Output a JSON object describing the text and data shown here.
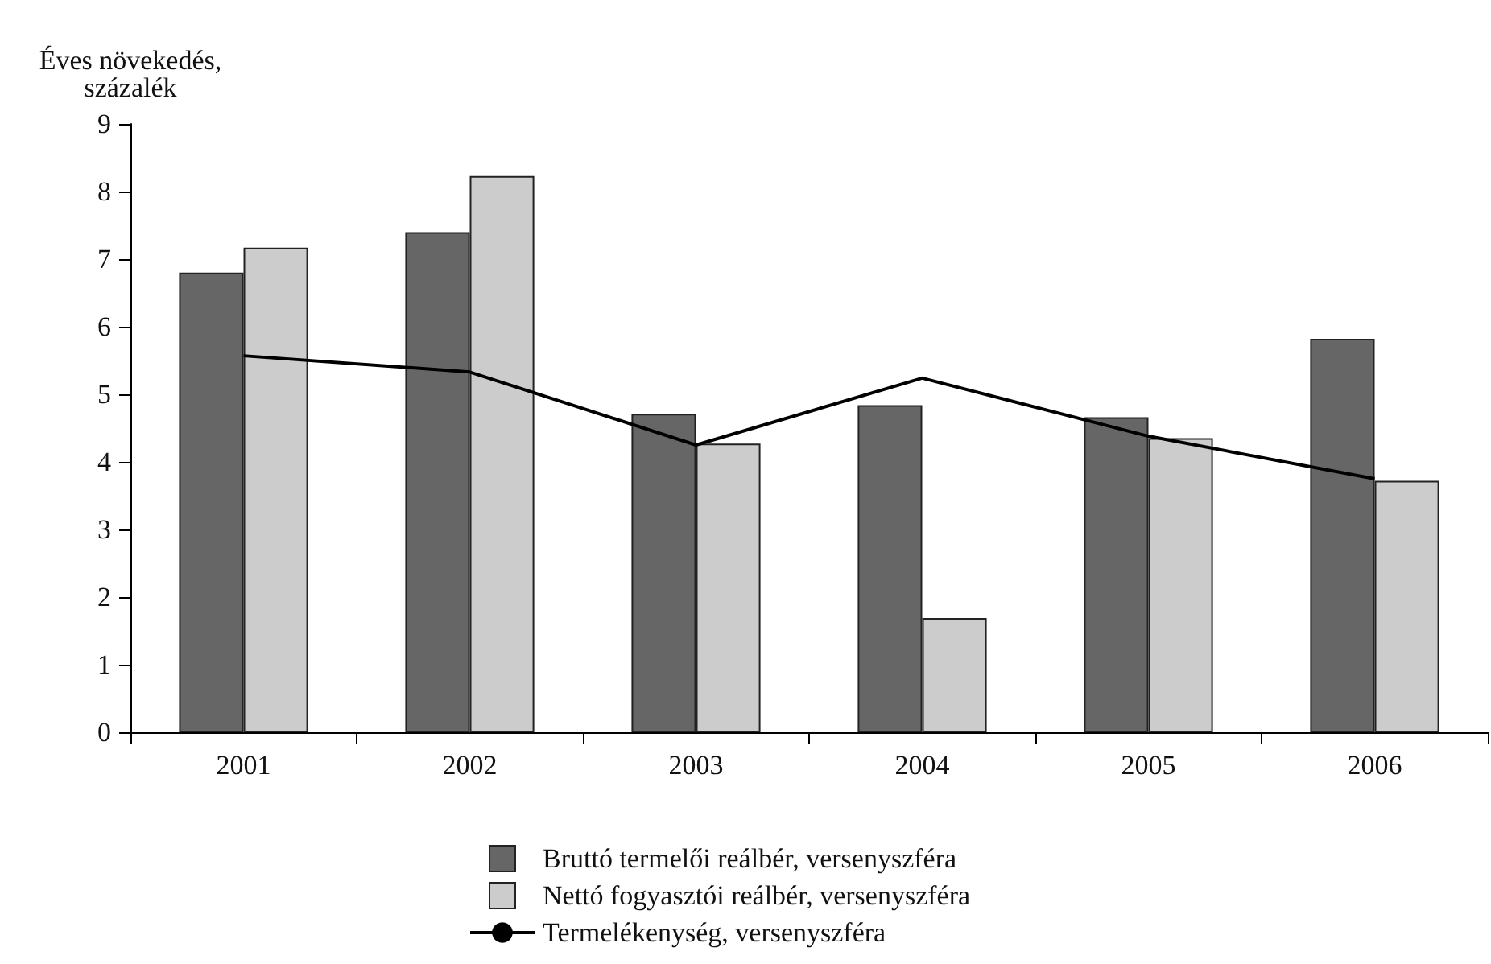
{
  "chart_data": {
    "type": "bar",
    "ylabel": "Éves növekedés,\nszázalék",
    "categories": [
      "2001",
      "2002",
      "2003",
      "2004",
      "2005",
      "2006"
    ],
    "series": [
      {
        "name": "Bruttó termelői reálbér, versenyszféra",
        "color": "#666666",
        "values": [
          6.8,
          7.4,
          4.71,
          4.84,
          4.66,
          5.82
        ]
      },
      {
        "name": "Nettó fogyasztói reálbér, versenyszféra",
        "color": "#cccccc",
        "values": [
          7.17,
          8.23,
          4.27,
          1.69,
          4.35,
          3.72
        ]
      },
      {
        "name": "Termelékenység, versenyszféra",
        "type": "line",
        "color": "#000000",
        "values": [
          5.57,
          5.33,
          4.25,
          5.24,
          4.38,
          3.75
        ]
      }
    ],
    "ylim": [
      0,
      9
    ],
    "yticks": [
      0,
      1,
      2,
      3,
      4,
      5,
      6,
      7,
      8,
      9
    ],
    "grid": false,
    "legend": "bottom",
    "marker": "none",
    "line_style": "solid"
  }
}
